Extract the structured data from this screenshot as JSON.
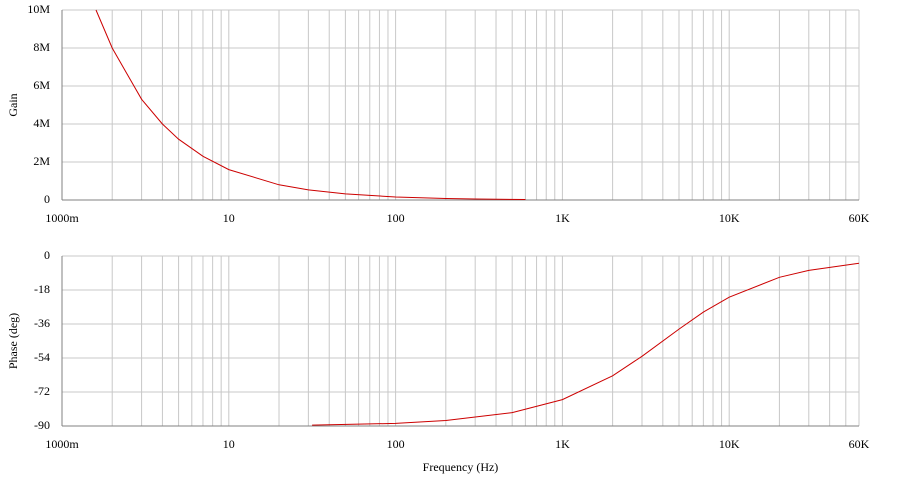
{
  "chart_data": [
    {
      "type": "line",
      "ylabel": "Gain",
      "xscale": "log",
      "grid": true,
      "color": "#cc0000",
      "x": [
        1.6,
        2,
        3,
        4,
        5,
        7,
        10,
        20,
        30,
        50,
        100,
        200,
        300,
        600
      ],
      "values": [
        10000000,
        8000000,
        5300000,
        4000000,
        3200000,
        2300000,
        1600000,
        800000,
        530000,
        320000,
        160000,
        80000,
        53000,
        27000
      ],
      "xlim": [
        1,
        60000
      ],
      "xticks": [
        {
          "value": 1,
          "label": "1000m"
        },
        10,
        100,
        {
          "value": 1000,
          "label": "1K"
        },
        {
          "value": 10000,
          "label": "10K"
        },
        {
          "value": 60000,
          "label": "60K"
        }
      ],
      "ylim": [
        0,
        10000000
      ],
      "yticks": [
        0,
        {
          "value": 2000000,
          "label": "2M"
        },
        {
          "value": 4000000,
          "label": "4M"
        },
        {
          "value": 6000000,
          "label": "6M"
        },
        {
          "value": 8000000,
          "label": "8M"
        },
        {
          "value": 10000000,
          "label": "10M"
        }
      ]
    },
    {
      "type": "line",
      "ylabel": "Phase (deg)",
      "xlabel": "Frequency (Hz)",
      "xscale": "log",
      "grid": true,
      "color": "#cc0000",
      "x": [
        31.6,
        100,
        200,
        500,
        1000,
        2000,
        3000,
        5000,
        7000,
        10000,
        20000,
        30000,
        60000
      ],
      "values": [
        -89.5,
        -88.6,
        -87.1,
        -82.9,
        -76,
        -63.4,
        -53.1,
        -38.7,
        -29.7,
        -21.8,
        -11.3,
        -7.6,
        -3.8
      ],
      "xlim": [
        1,
        60000
      ],
      "xticks": [
        {
          "value": 1,
          "label": "1000m"
        },
        10,
        100,
        {
          "value": 1000,
          "label": "1K"
        },
        {
          "value": 10000,
          "label": "10K"
        },
        {
          "value": 60000,
          "label": "60K"
        }
      ],
      "ylim": [
        -90,
        0
      ],
      "yticks": [
        -90,
        -72,
        -54,
        -36,
        -18,
        0
      ]
    }
  ]
}
